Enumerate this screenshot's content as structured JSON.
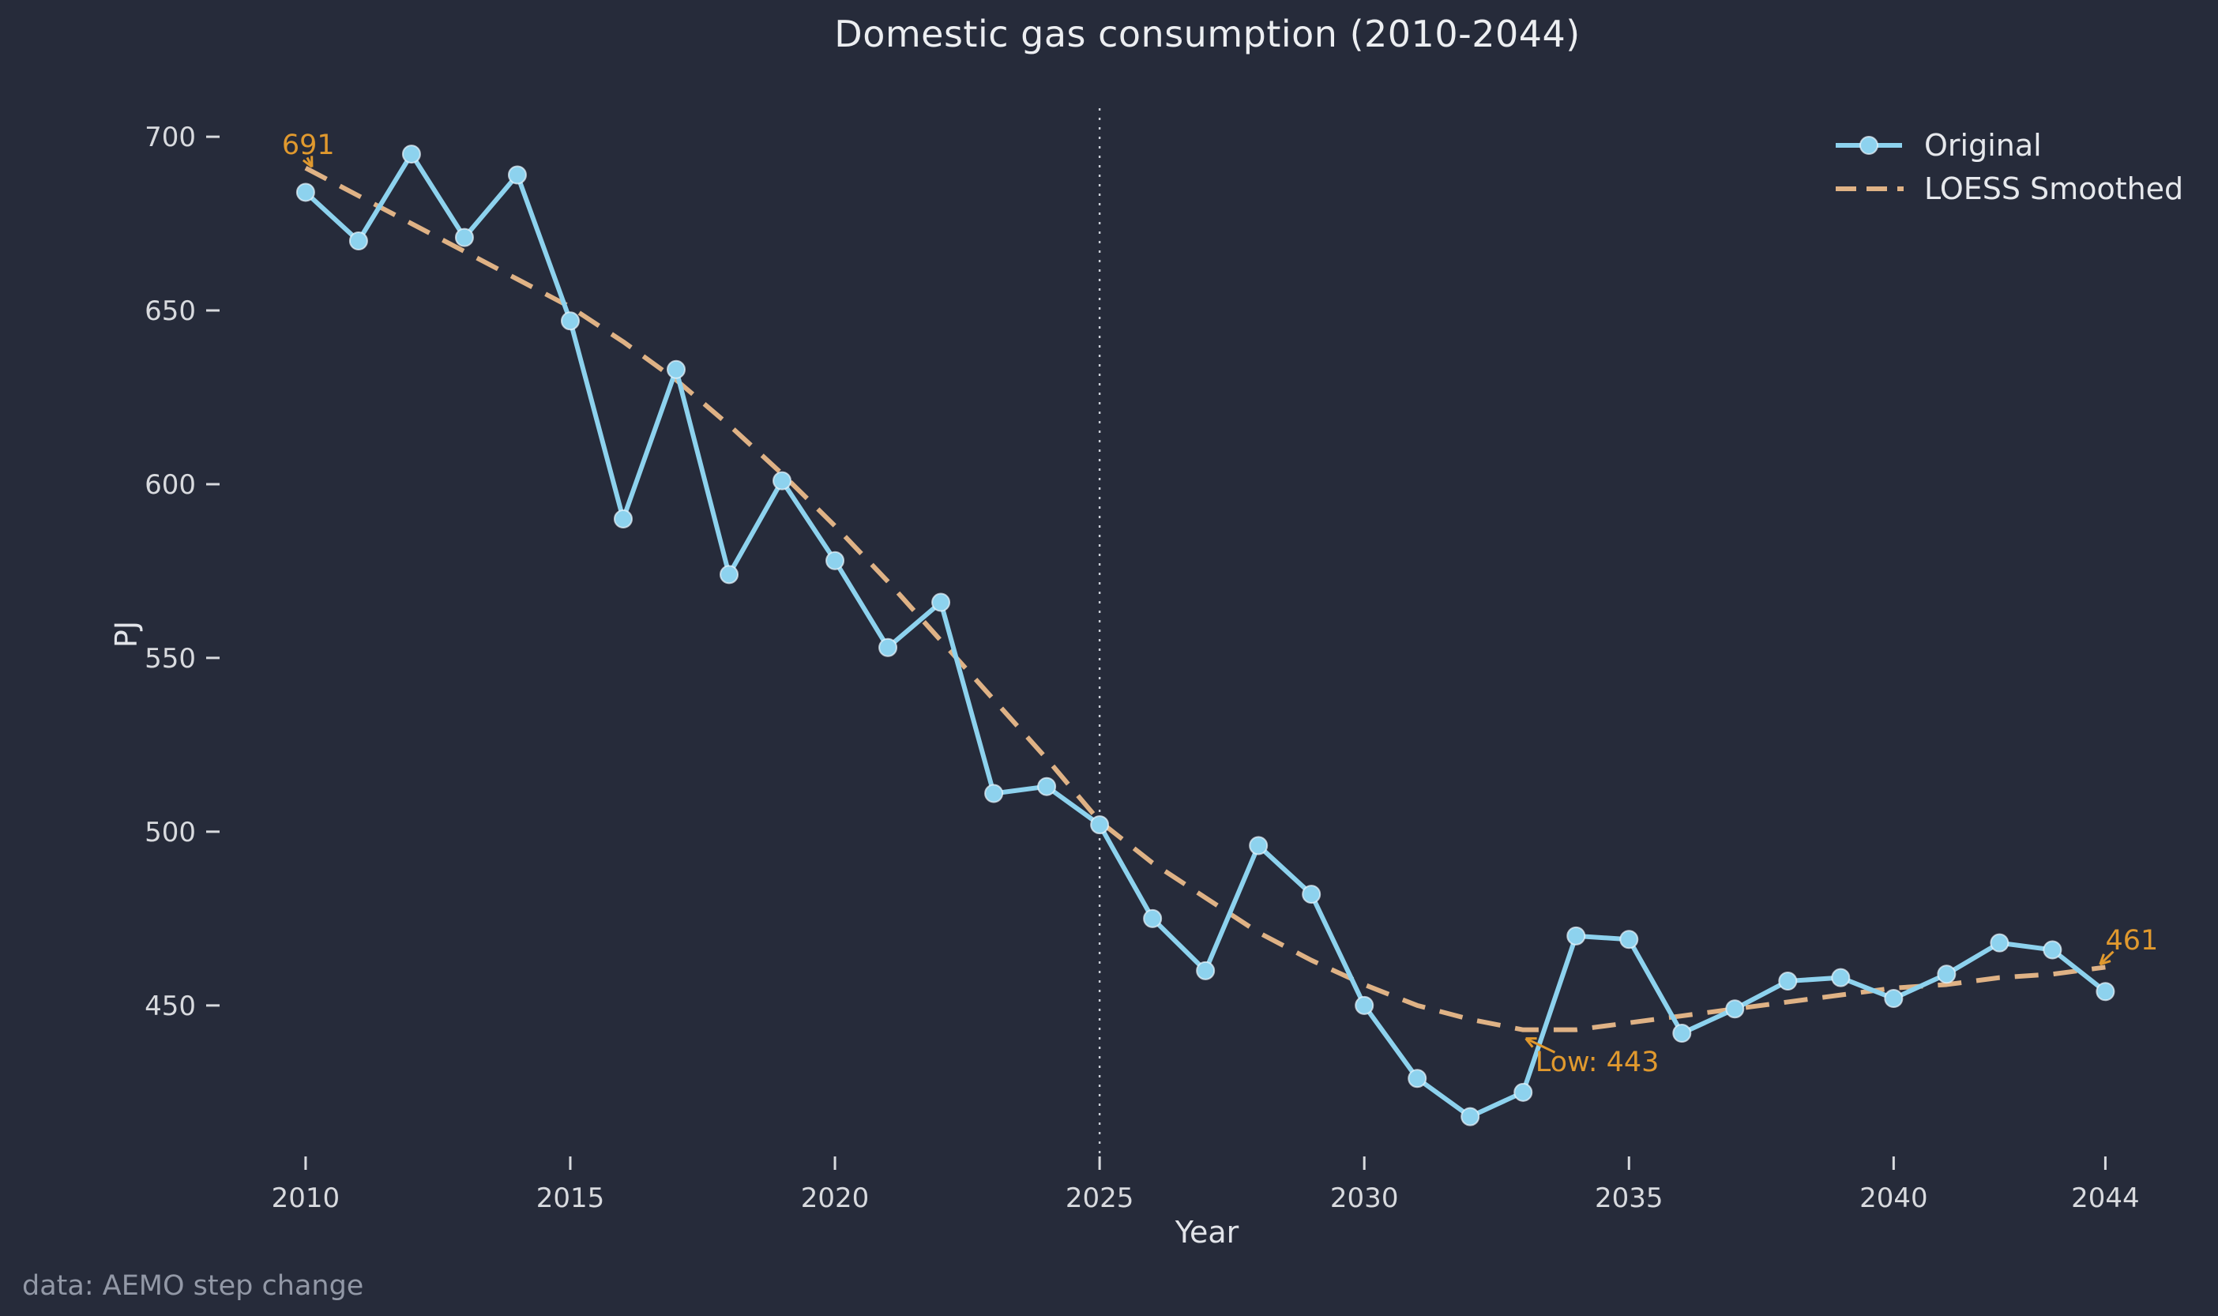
{
  "title": "Domestic gas consumption (2010-2044)",
  "caption": "data: AEMO step change",
  "axes": {
    "xlabel": "Year",
    "ylabel": "PJ",
    "yticks": [
      700,
      650,
      600,
      550,
      500,
      450
    ],
    "xticks": [
      2010,
      2015,
      2020,
      2025,
      2030,
      2035,
      2040,
      2044
    ]
  },
  "legend": [
    {
      "label": "Original",
      "style": "solid-line-with-marker"
    },
    {
      "label": "LOESS Smoothed",
      "style": "dashed-line"
    }
  ],
  "annotations": [
    {
      "text": "691",
      "text_at": [
        2010.05,
        697.5
      ],
      "arrow_from": [
        2010.03,
        694.0
      ],
      "arrow_to": [
        2010.12,
        691.3
      ]
    },
    {
      "text": "Low: 443",
      "text_at": [
        2034.4,
        433.5
      ],
      "arrow_from": [
        2033.6,
        436.5
      ],
      "arrow_to": [
        2033.05,
        440.5
      ]
    },
    {
      "text": "461",
      "text_at": [
        2044.5,
        468.5
      ],
      "arrow_from": [
        2044.15,
        465.5
      ],
      "arrow_to": [
        2043.9,
        461.8
      ]
    }
  ],
  "colors": {
    "background": "#262b3a",
    "original_line": "#8dd2ee",
    "marker_edge": "#eaf7fd",
    "loess_line": "#dfb285",
    "annotation": "#e0992e",
    "tick_text": "#d8dade",
    "tick_mark": "#d8dade",
    "vline": "#c9cdd6",
    "title_text": "#eceef1"
  },
  "chart_data": {
    "type": "line",
    "title": "Domestic gas consumption (2010-2044)",
    "xlabel": "Year",
    "ylabel": "PJ",
    "grid": false,
    "legend_position": "upper right",
    "xlim": [
      2008.36,
      2045.71
    ],
    "ylim": [
      407,
      708.2
    ],
    "vline_x": 2025,
    "x": [
      2010,
      2011,
      2012,
      2013,
      2014,
      2015,
      2016,
      2017,
      2018,
      2019,
      2020,
      2021,
      2022,
      2023,
      2024,
      2025,
      2026,
      2027,
      2028,
      2029,
      2030,
      2031,
      2032,
      2033,
      2034,
      2035,
      2036,
      2037,
      2038,
      2039,
      2040,
      2041,
      2042,
      2043,
      2044
    ],
    "series": [
      {
        "name": "Original",
        "values": [
          684,
          670,
          695,
          671,
          689,
          647,
          590,
          633,
          574,
          601,
          578,
          553,
          566,
          511,
          513,
          502,
          475,
          460,
          496,
          482,
          450,
          429,
          418,
          425,
          470,
          469,
          442,
          449,
          457,
          458,
          452,
          459,
          468,
          466,
          454
        ]
      },
      {
        "name": "LOESS Smoothed",
        "values": [
          691,
          683,
          675,
          667,
          659,
          651,
          641,
          630,
          617,
          603,
          588,
          572,
          555,
          538,
          521,
          503,
          491,
          481,
          471,
          463,
          456,
          450,
          446,
          443,
          443,
          445,
          447,
          449,
          451,
          453,
          455,
          456,
          458,
          459,
          461
        ]
      }
    ]
  }
}
